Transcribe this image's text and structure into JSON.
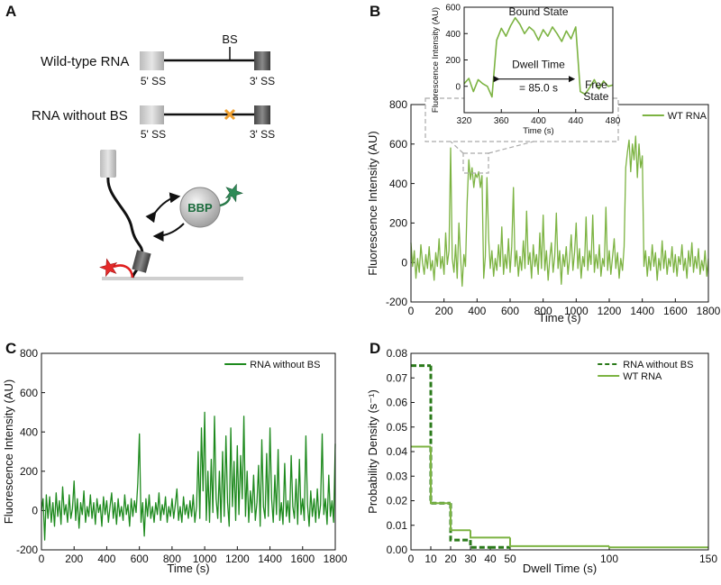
{
  "diagram": {
    "panel": "A",
    "rows": [
      {
        "label": "Wild-type RNA",
        "site": "BS",
        "left": "5' SS",
        "right": "3' SS"
      },
      {
        "label": "RNA without BS",
        "left": "5' SS",
        "right": "3' SS"
      }
    ],
    "protein": "BBP"
  },
  "chart_data": [
    {
      "panel": "B",
      "type": "line",
      "xlabel": "Time (s)",
      "ylabel": "Fluorescence Intensity (AU)",
      "xlim": [
        0,
        1800
      ],
      "ylim": [
        -200,
        800
      ],
      "xticks": [
        0,
        200,
        400,
        600,
        800,
        1000,
        1200,
        1400,
        1600,
        1800
      ],
      "yticks": [
        -200,
        0,
        200,
        400,
        600,
        800
      ],
      "legend": "upper right",
      "x": [
        0,
        10,
        20,
        30,
        40,
        50,
        60,
        70,
        80,
        90,
        100,
        110,
        120,
        130,
        140,
        150,
        160,
        170,
        180,
        190,
        200,
        210,
        220,
        230,
        240,
        250,
        260,
        270,
        280,
        290,
        300,
        310,
        320,
        330,
        340,
        350,
        360,
        370,
        380,
        390,
        400,
        410,
        420,
        430,
        440,
        450,
        460,
        470,
        480,
        490,
        500,
        510,
        520,
        530,
        540,
        550,
        560,
        570,
        580,
        590,
        600,
        610,
        620,
        630,
        640,
        650,
        660,
        670,
        680,
        690,
        700,
        710,
        720,
        730,
        740,
        750,
        760,
        770,
        780,
        790,
        800,
        810,
        820,
        830,
        840,
        850,
        860,
        870,
        880,
        890,
        900,
        910,
        920,
        930,
        940,
        950,
        960,
        970,
        980,
        990,
        1000,
        1010,
        1020,
        1030,
        1040,
        1050,
        1060,
        1070,
        1080,
        1090,
        1100,
        1110,
        1120,
        1130,
        1140,
        1150,
        1160,
        1170,
        1180,
        1190,
        1200,
        1210,
        1220,
        1230,
        1240,
        1250,
        1260,
        1270,
        1280,
        1290,
        1300,
        1310,
        1320,
        1330,
        1340,
        1350,
        1360,
        1370,
        1380,
        1390,
        1400,
        1410,
        1420,
        1430,
        1440,
        1450,
        1460,
        1470,
        1480,
        1490,
        1500,
        1510,
        1520,
        1530,
        1540,
        1550,
        1560,
        1570,
        1580,
        1590,
        1600,
        1610,
        1620,
        1630,
        1640,
        1650,
        1660,
        1670,
        1680,
        1690,
        1700,
        1710,
        1720,
        1730,
        1740,
        1750,
        1760,
        1770,
        1780,
        1790,
        1800
      ],
      "series": [
        {
          "name": "WT RNA",
          "color": "#7cb342",
          "values": [
            100,
            -20,
            60,
            -80,
            20,
            -50,
            90,
            0,
            -60,
            40,
            -30,
            80,
            -40,
            10,
            -90,
            50,
            -20,
            120,
            -30,
            30,
            -60,
            150,
            -10,
            60,
            580,
            20,
            -50,
            90,
            -80,
            200,
            30,
            -120,
            40,
            -20,
            300,
            520,
            420,
            480,
            380,
            450,
            430,
            460,
            380,
            440,
            -80,
            30,
            430,
            120,
            -30,
            60,
            -70,
            20,
            -40,
            90,
            -20,
            180,
            -60,
            40,
            -30,
            120,
            -50,
            80,
            380,
            -20,
            60,
            -70,
            30,
            -40,
            110,
            -30,
            260,
            -10,
            50,
            -80,
            90,
            -20,
            40,
            -60,
            150,
            -30,
            240,
            -40,
            60,
            -90,
            20,
            100,
            -50,
            30,
            250,
            -30,
            60,
            -110,
            40,
            -20,
            80,
            -60,
            20,
            140,
            -40,
            50,
            200,
            -30,
            70,
            -80,
            30,
            -20,
            230,
            -40,
            60,
            -10,
            240,
            -50,
            40,
            -30,
            90,
            -70,
            20,
            -20,
            280,
            -40,
            60,
            -60,
            30,
            120,
            -30,
            50,
            -80,
            20,
            -40,
            80,
            480,
            560,
            620,
            460,
            600,
            520,
            640,
            430,
            600,
            480,
            540,
            -20,
            60,
            -70,
            30,
            -40,
            90,
            -20,
            50,
            -90,
            20,
            -40,
            110,
            -30,
            60,
            -60,
            20,
            -20,
            80,
            -50,
            40,
            -70,
            30,
            -10,
            90,
            -40,
            20,
            -80,
            60,
            -20,
            100,
            -50,
            30,
            -30,
            70,
            -60,
            10,
            -40,
            60,
            -70,
            20
          ]
        }
      ]
    },
    {
      "type": "line",
      "xlabel": "Time (s)",
      "ylabel": "Fluorescence Intensity (AU)",
      "xlim": [
        320,
        480
      ],
      "ylim": [
        -200,
        600
      ],
      "xticks": [
        320,
        360,
        400,
        440,
        480
      ],
      "yticks": [
        0,
        200,
        400,
        600
      ],
      "x": [
        320,
        325,
        330,
        335,
        340,
        345,
        350,
        355,
        360,
        365,
        370,
        375,
        380,
        385,
        390,
        395,
        400,
        405,
        410,
        415,
        420,
        425,
        430,
        435,
        440,
        445,
        450,
        455,
        460,
        465,
        470,
        475,
        480
      ],
      "series": [
        {
          "color": "#7cb342",
          "values": [
            20,
            60,
            -40,
            50,
            20,
            0,
            -80,
            350,
            440,
            380,
            460,
            520,
            470,
            400,
            450,
            420,
            350,
            430,
            380,
            450,
            400,
            340,
            420,
            360,
            450,
            -40,
            -60,
            -10,
            50,
            -20,
            40,
            0,
            10
          ]
        }
      ],
      "annotations": {
        "bound": "Bound State",
        "dwell": "Dwell Time",
        "dwell_value": "= 85.0 s",
        "free": [
          "Free",
          "State"
        ]
      }
    },
    {
      "panel": "C",
      "type": "line",
      "xlabel": "Time (s)",
      "ylabel": "Fluorescence Intensity (AU)",
      "xlim": [
        0,
        1800
      ],
      "ylim": [
        -200,
        800
      ],
      "xticks": [
        0,
        200,
        400,
        600,
        800,
        1000,
        1200,
        1400,
        1600,
        1800
      ],
      "yticks": [
        -200,
        0,
        200,
        400,
        600,
        800
      ],
      "legend": "upper right",
      "x": [
        0,
        10,
        20,
        30,
        40,
        50,
        60,
        70,
        80,
        90,
        100,
        110,
        120,
        130,
        140,
        150,
        160,
        170,
        180,
        190,
        200,
        210,
        220,
        230,
        240,
        250,
        260,
        270,
        280,
        290,
        300,
        310,
        320,
        330,
        340,
        350,
        360,
        370,
        380,
        390,
        400,
        410,
        420,
        430,
        440,
        450,
        460,
        470,
        480,
        490,
        500,
        510,
        520,
        530,
        540,
        550,
        560,
        570,
        580,
        590,
        600,
        610,
        620,
        630,
        640,
        650,
        660,
        670,
        680,
        690,
        700,
        710,
        720,
        730,
        740,
        750,
        760,
        770,
        780,
        790,
        800,
        810,
        820,
        830,
        840,
        850,
        860,
        870,
        880,
        890,
        900,
        910,
        920,
        930,
        940,
        950,
        960,
        970,
        980,
        990,
        1000,
        1010,
        1020,
        1030,
        1040,
        1050,
        1060,
        1070,
        1080,
        1090,
        1100,
        1110,
        1120,
        1130,
        1140,
        1150,
        1160,
        1170,
        1180,
        1190,
        1200,
        1210,
        1220,
        1230,
        1240,
        1250,
        1260,
        1270,
        1280,
        1290,
        1300,
        1310,
        1320,
        1330,
        1340,
        1350,
        1360,
        1370,
        1380,
        1390,
        1400,
        1410,
        1420,
        1430,
        1440,
        1450,
        1460,
        1470,
        1480,
        1490,
        1500,
        1510,
        1520,
        1530,
        1540,
        1550,
        1560,
        1570,
        1580,
        1590,
        1600,
        1610,
        1620,
        1630,
        1640,
        1650,
        1660,
        1670,
        1680,
        1690,
        1700,
        1710,
        1720,
        1730,
        1740,
        1750,
        1760,
        1770,
        1780,
        1790,
        1800
      ],
      "series": [
        {
          "name": "RNA without BS",
          "color": "#1e8a1e",
          "values": [
            0,
            60,
            -150,
            80,
            -40,
            70,
            -60,
            40,
            -80,
            90,
            -30,
            50,
            -70,
            120,
            -20,
            30,
            -60,
            80,
            -40,
            10,
            150,
            -50,
            60,
            -90,
            40,
            -20,
            100,
            -60,
            20,
            -30,
            80,
            -40,
            40,
            -70,
            60,
            -10,
            30,
            -80,
            70,
            -20,
            50,
            -60,
            20,
            90,
            -40,
            40,
            -70,
            60,
            -30,
            20,
            -50,
            80,
            -20,
            30,
            -80,
            60,
            -30,
            50,
            -10,
            140,
            390,
            -60,
            40,
            -130,
            60,
            -30,
            80,
            -40,
            20,
            -60,
            40,
            -20,
            90,
            -50,
            30,
            -20,
            70,
            -60,
            20,
            -30,
            60,
            -40,
            30,
            110,
            -50,
            20,
            -60,
            70,
            -20,
            30,
            -40,
            50,
            -30,
            80,
            -60,
            20,
            300,
            -40,
            420,
            100,
            500,
            -50,
            200,
            -60,
            260,
            -10,
            480,
            60,
            -40,
            200,
            -60,
            300,
            -30,
            380,
            40,
            -80,
            420,
            20,
            250,
            -50,
            330,
            -20,
            280,
            60,
            480,
            -30,
            200,
            -60,
            100,
            -10,
            180,
            -50,
            40,
            230,
            -80,
            360,
            20,
            -40,
            290,
            -30,
            420,
            60,
            -60,
            180,
            -20,
            310,
            -50,
            40,
            -70,
            240,
            -30,
            50,
            -60,
            280,
            20,
            -40,
            160,
            -70,
            260,
            -20,
            60,
            -50,
            380,
            30,
            -80,
            100,
            -30,
            60,
            -60,
            110,
            -40,
            30,
            390,
            -20,
            60,
            -70,
            180,
            -30,
            50,
            -60,
            340
          ]
        }
      ]
    },
    {
      "panel": "D",
      "type": "step",
      "xlabel": "Dwell Time (s)",
      "ylabel": "Probability Density (s⁻¹)",
      "xlim": [
        0,
        150
      ],
      "ylim": [
        0,
        0.08
      ],
      "xticks": [
        0,
        10,
        20,
        30,
        40,
        50,
        100,
        150
      ],
      "yticks": [
        {
          "value": 0,
          "label": "0.00"
        },
        {
          "value": 0.01,
          "label": "0.01"
        },
        {
          "value": 0.02,
          "label": "0.02"
        },
        {
          "value": 0.03,
          "label": "0.03"
        },
        {
          "value": 0.04,
          "label": "0.04"
        },
        {
          "value": 0.05,
          "label": "0.05"
        },
        {
          "value": 0.06,
          "label": "0.06"
        },
        {
          "value": 0.07,
          "label": "0.07"
        },
        {
          "value": 0.08,
          "label": "0.08"
        }
      ],
      "legend": "upper right",
      "series": [
        {
          "name": "RNA without BS",
          "color": "#2a7a1a",
          "line_style": "dashed",
          "bins": [
            0,
            10,
            20,
            30,
            40,
            50
          ],
          "values": [
            0.075,
            0.019,
            0.004,
            0.001,
            0.001
          ]
        },
        {
          "name": "WT RNA",
          "color": "#7cb342",
          "line_style": "solid",
          "bins": [
            0,
            10,
            20,
            30,
            50,
            100,
            150
          ],
          "values": [
            0.042,
            0.019,
            0.008,
            0.005,
            0.0015,
            0.001
          ]
        }
      ]
    }
  ]
}
